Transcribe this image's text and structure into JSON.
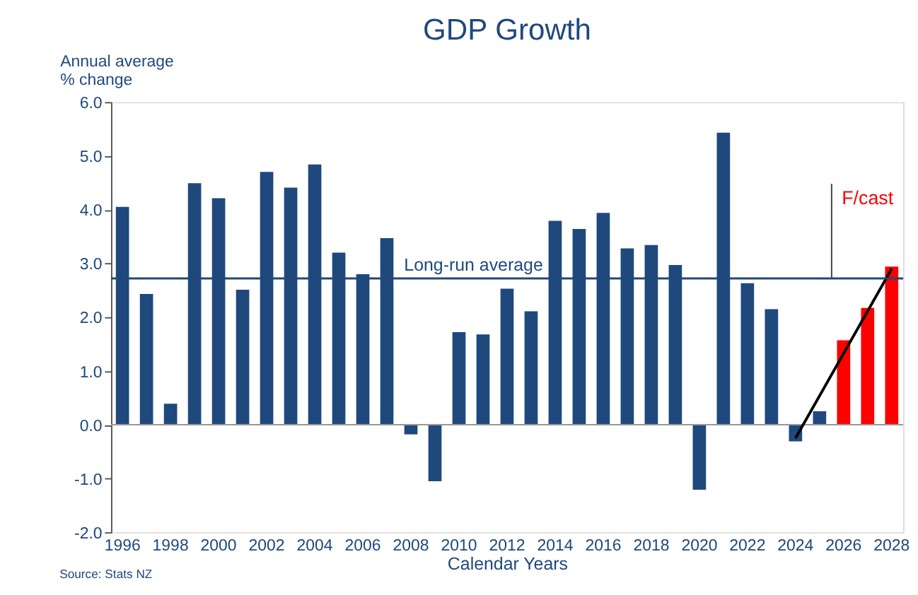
{
  "chart_data": {
    "type": "bar",
    "title": "GDP Growth",
    "ylabel": "Annual average\n% change",
    "xlabel": "Calendar Years",
    "categories": [
      "1996",
      null,
      "1998",
      null,
      "2000",
      null,
      "2002",
      null,
      "2004",
      null,
      "2006",
      null,
      "2008",
      null,
      "2010",
      null,
      "2012",
      null,
      "2014",
      null,
      "2016",
      null,
      "2018",
      null,
      "2020",
      null,
      "2022",
      null,
      "2024",
      null,
      "2026",
      null,
      "2028"
    ],
    "series": [
      {
        "values": [
          4.05,
          2.43,
          0.39,
          4.49,
          4.21,
          2.51,
          4.7,
          4.41,
          4.84,
          3.2,
          2.8,
          3.47,
          -0.18,
          -1.05,
          1.72,
          1.68,
          2.53,
          2.11,
          3.79,
          3.64,
          3.94,
          3.28,
          3.34,
          2.97,
          -1.21,
          5.43,
          2.63,
          2.15,
          -0.31,
          0.25,
          1.57,
          2.17,
          2.94
        ],
        "colors": [
          "#1f497d",
          "#1f497d",
          "#1f497d",
          "#1f497d",
          "#1f497d",
          "#1f497d",
          "#1f497d",
          "#1f497d",
          "#1f497d",
          "#1f497d",
          "#1f497d",
          "#1f497d",
          "#1f497d",
          "#1f497d",
          "#1f497d",
          "#1f497d",
          "#1f497d",
          "#1f497d",
          "#1f497d",
          "#1f497d",
          "#1f497d",
          "#1f497d",
          "#1f497d",
          "#1f497d",
          "#1f497d",
          "#1f497d",
          "#1f497d",
          "#1f497d",
          "#1f497d",
          "#1f497d",
          "#ff0000",
          "#ff0000",
          "#ff0000"
        ]
      },
      {
        "type": "line",
        "color": "#000000",
        "values": [
          null,
          null,
          null,
          null,
          null,
          null,
          null,
          null,
          null,
          null,
          null,
          null,
          null,
          null,
          null,
          null,
          null,
          null,
          null,
          null,
          null,
          null,
          null,
          null,
          null,
          null,
          null,
          null,
          -0.25,
          null,
          null,
          null,
          2.9
        ]
      }
    ],
    "ylim": [
      -2.0,
      6.0
    ],
    "yticks": [
      {
        "value": -2,
        "label": "-2.0"
      },
      {
        "value": -1,
        "label": "-1.0"
      },
      {
        "value": 0,
        "label": "0.0"
      },
      {
        "value": 1,
        "label": "1.0"
      },
      {
        "value": 2,
        "label": "2.0"
      },
      {
        "value": 3,
        "label": "3.0"
      },
      {
        "value": 4,
        "label": "4.0"
      },
      {
        "value": 5,
        "label": "5.0"
      },
      {
        "value": 6,
        "label": "6.0"
      }
    ],
    "ref_lines": [
      {
        "axis": "y",
        "value": 2.72,
        "label": "Long-run average",
        "color": "#1f497d"
      },
      {
        "axis": "x",
        "value": "2026",
        "label": "F/cast",
        "color": "#404040"
      }
    ],
    "annotations": [
      "Source: Stats NZ"
    ]
  }
}
